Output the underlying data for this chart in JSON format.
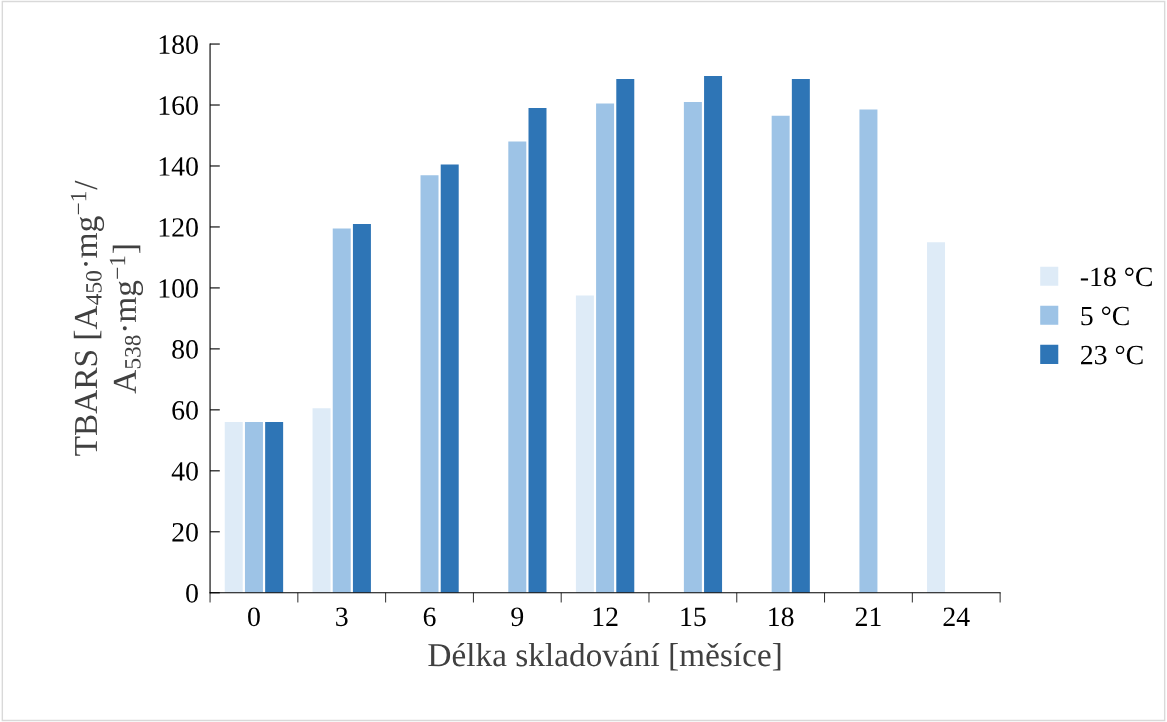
{
  "chart_data": {
    "type": "bar",
    "xlabel": "Délka skladování [měsíce]",
    "ylabel": "TBARS [A$_{450}$·mg$^{−1}$/\nA$_{538}$·mg$^{−1}$]",
    "categories": [
      "0",
      "3",
      "6",
      "9",
      "12",
      "15",
      "18",
      "21",
      "24"
    ],
    "series": [
      {
        "name": "-18 °C",
        "color": "#deebf7",
        "values": [
          56,
          60.5,
          null,
          null,
          97.5,
          null,
          null,
          null,
          115
        ]
      },
      {
        "name": "5 °C",
        "color": "#9dc3e6",
        "values": [
          56,
          119.5,
          137,
          148,
          160.5,
          161,
          156.5,
          158.5,
          null
        ]
      },
      {
        "name": "23 °C",
        "color": "#2e75b6",
        "values": [
          56,
          121,
          140.5,
          159,
          168.5,
          169.5,
          168.5,
          null,
          null
        ]
      }
    ],
    "ylim": [
      0,
      180
    ],
    "yticks": [
      0,
      20,
      40,
      60,
      80,
      100,
      120,
      140,
      160,
      180
    ],
    "grid": false,
    "legend": "right"
  }
}
